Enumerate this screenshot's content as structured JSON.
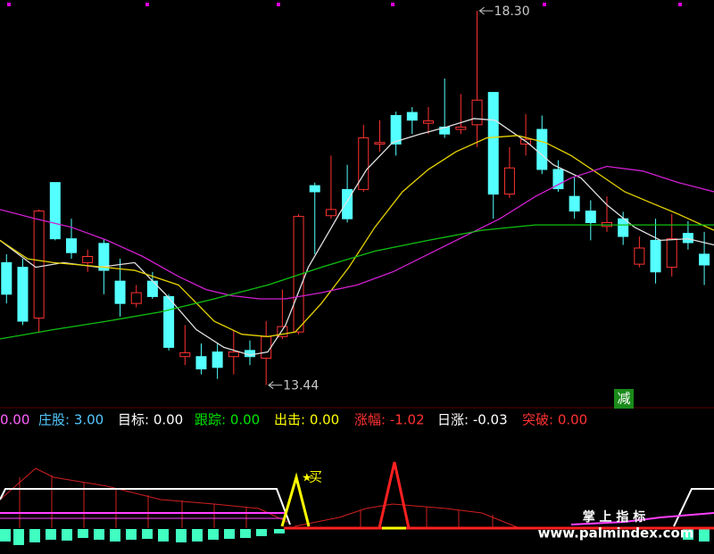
{
  "chart_data": {
    "type": "candlestick",
    "xlim": [
      -0.4,
      43.6
    ],
    "ylim": [
      13.17,
      18.44
    ],
    "up_color": "#ff3232",
    "down_color": "#54ffff",
    "open": [
      15.03,
      14.97,
      14.31,
      16.07,
      15.34,
      15.03,
      15.28,
      14.79,
      14.5,
      14.79,
      14.59,
      13.81,
      13.81,
      13.87,
      13.81,
      13.89,
      13.79,
      14.07,
      14.13,
      16.03,
      15.64,
      15.98,
      15.98,
      16.57,
      16.94,
      16.98,
      16.84,
      16.79,
      16.76,
      16.82,
      17.24,
      15.92,
      16.57,
      16.76,
      16.24,
      15.89,
      15.7,
      15.5,
      15.6,
      15.01,
      15.32,
      14.97,
      15.41,
      15.14
    ],
    "high": [
      15.14,
      15.08,
      15.72,
      16.07,
      15.6,
      15.2,
      15.34,
      15.08,
      14.74,
      14.91,
      14.62,
      14.22,
      13.98,
      13.98,
      14.16,
      14.02,
      14.27,
      14.68,
      15.66,
      16.07,
      16.42,
      16.3,
      16.82,
      16.88,
      16.99,
      17.05,
      17.05,
      17.42,
      17.22,
      18.3,
      17.24,
      16.53,
      16.96,
      16.94,
      16.36,
      16.15,
      15.84,
      15.89,
      15.69,
      15.37,
      15.6,
      15.66,
      15.57,
      15.43
    ],
    "low": [
      14.5,
      14.22,
      14.13,
      15.32,
      15.08,
      14.91,
      14.62,
      14.33,
      14.45,
      14.56,
      13.89,
      13.7,
      13.58,
      13.52,
      13.58,
      13.7,
      13.44,
      14.04,
      14.1,
      15.14,
      15.6,
      15.55,
      15.95,
      16.47,
      16.42,
      16.7,
      16.7,
      16.65,
      16.7,
      16.53,
      15.6,
      15.87,
      16.42,
      16.18,
      15.95,
      15.6,
      15.32,
      15.43,
      15.26,
      14.97,
      14.76,
      14.85,
      15.2,
      14.74
    ],
    "close": [
      14.62,
      14.27,
      15.7,
      15.34,
      15.16,
      15.11,
      14.93,
      14.5,
      14.64,
      14.59,
      13.93,
      13.86,
      13.65,
      13.67,
      13.87,
      13.81,
      14.07,
      14.2,
      15.63,
      15.95,
      15.72,
      15.6,
      16.65,
      16.59,
      16.57,
      16.88,
      16.87,
      16.7,
      16.79,
      17.14,
      15.92,
      16.26,
      16.63,
      16.24,
      15.99,
      15.7,
      15.55,
      15.55,
      15.37,
      15.22,
      14.91,
      15.34,
      15.29,
      15.0
    ],
    "lines": [
      {
        "color": "#e0e0e0",
        "x": [
          -0.4,
          1.8,
          3.5,
          5.7,
          7.9,
          9.8,
          11.7,
          13.4,
          15.0,
          16.1,
          17.2,
          18.6,
          20.5,
          22.2,
          23.8,
          25.5,
          27.1,
          28.8,
          30.1,
          32.1,
          33.7,
          35.4,
          37.0,
          38.7,
          40.3,
          42.0,
          43.6
        ],
        "values": [
          15.32,
          14.97,
          15.03,
          14.97,
          15.03,
          14.62,
          14.16,
          13.93,
          13.83,
          13.87,
          14.22,
          14.97,
          15.66,
          16.24,
          16.59,
          16.7,
          16.79,
          16.9,
          16.88,
          16.59,
          16.3,
          16.13,
          15.78,
          15.49,
          15.32,
          15.34,
          15.26
        ]
      },
      {
        "color": "#e6d200",
        "x": [
          -0.4,
          1.3,
          2.9,
          5.1,
          7.9,
          10.6,
          12.8,
          14.5,
          16.1,
          17.8,
          19.4,
          21.1,
          22.7,
          24.4,
          26.0,
          27.7,
          29.6,
          31.5,
          33.2,
          34.8,
          36.5,
          38.1,
          39.8,
          41.4,
          43.6
        ],
        "values": [
          15.32,
          15.08,
          15.03,
          14.99,
          14.93,
          14.74,
          14.27,
          14.1,
          14.07,
          14.13,
          14.5,
          14.97,
          15.49,
          15.95,
          16.24,
          16.47,
          16.65,
          16.68,
          16.59,
          16.42,
          16.18,
          15.95,
          15.8,
          15.66,
          15.45
        ]
      },
      {
        "color": "#d020d0",
        "x": [
          -0.4,
          1.8,
          4.0,
          6.2,
          8.4,
          10.6,
          12.3,
          13.9,
          15.6,
          17.2,
          19.4,
          21.6,
          23.8,
          26.0,
          28.2,
          30.4,
          32.6,
          34.8,
          37.0,
          39.2,
          41.4,
          43.6
        ],
        "values": [
          15.72,
          15.6,
          15.49,
          15.32,
          15.11,
          14.85,
          14.68,
          14.6,
          14.56,
          14.56,
          14.64,
          14.74,
          14.91,
          15.14,
          15.37,
          15.6,
          15.89,
          16.13,
          16.28,
          16.22,
          16.07,
          15.95
        ]
      },
      {
        "color": "#10c010",
        "x": [
          -0.4,
          2.9,
          6.2,
          9.5,
          12.8,
          16.1,
          19.4,
          22.7,
          26.0,
          29.3,
          32.6,
          35.9,
          39.2,
          43.6
        ],
        "values": [
          14.04,
          14.16,
          14.27,
          14.39,
          14.56,
          14.74,
          14.97,
          15.18,
          15.32,
          15.45,
          15.52,
          15.52,
          15.52,
          15.52
        ]
      }
    ],
    "annotations": [
      {
        "text": "18.30",
        "x": 29,
        "y": 18.3
      },
      {
        "text": "13.44",
        "x": 16,
        "y": 13.44
      }
    ]
  },
  "signal_box": "减",
  "indicator_row": [
    {
      "text": "0.00",
      "color": "#ff60ff"
    },
    {
      "text": "庄股: 3.00",
      "color": "#54c8ff"
    },
    {
      "text": "目标: 0.00",
      "color": "#ffffff"
    },
    {
      "text": "跟踪: 0.00",
      "color": "#00e600"
    },
    {
      "text": "出击: 0.00",
      "color": "#ffff00"
    },
    {
      "text": "涨幅: -1.02",
      "color": "#ff3232"
    },
    {
      "text": "日涨: -0.03",
      "color": "#ffffff"
    },
    {
      "text": "突破: 0.00",
      "color": "#ff3232"
    }
  ],
  "buy_label": "买",
  "watermark": {
    "title": "掌 上 指 标",
    "url": "www.palmindex.com"
  }
}
